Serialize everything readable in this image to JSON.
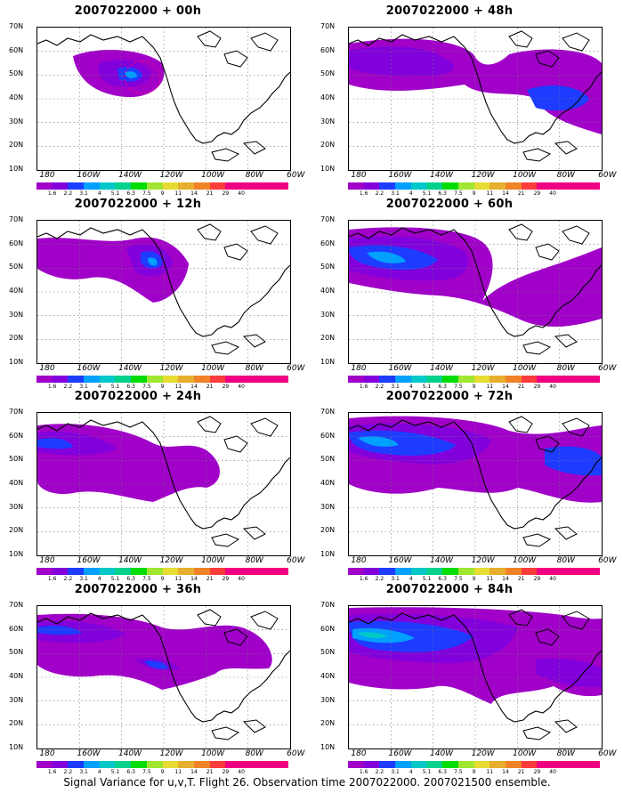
{
  "panels": [
    {
      "id": "p00",
      "title": "2007022000 + 00h"
    },
    {
      "id": "p48",
      "title": "2007022000 + 48h"
    },
    {
      "id": "p12",
      "title": "2007022000 + 12h"
    },
    {
      "id": "p60",
      "title": "2007022000 + 60h"
    },
    {
      "id": "p24",
      "title": "2007022000 + 24h"
    },
    {
      "id": "p72",
      "title": "2007022000 + 72h"
    },
    {
      "id": "p36",
      "title": "2007022000 + 36h"
    },
    {
      "id": "p84",
      "title": "2007022000 + 84h"
    }
  ],
  "lat_labels": [
    "70N",
    "60N",
    "50N",
    "40N",
    "30N",
    "20N",
    "10N"
  ],
  "lon_labels": [
    "180",
    "160W",
    "140W",
    "120W",
    "100W",
    "80W",
    "60W"
  ],
  "colorbar_labels": [
    "1.6",
    "2.2",
    "3.1",
    "4",
    "5.1",
    "6.3",
    "7.5",
    "9",
    "11",
    "14",
    "21",
    "29",
    "40"
  ],
  "colorbar_colors": [
    "#a000c8",
    "#8200dc",
    "#1e3cff",
    "#00a0ff",
    "#00c8c8",
    "#00d28c",
    "#00dc00",
    "#a0e632",
    "#e6dc32",
    "#e6af2d",
    "#f08228",
    "#fa3c3c",
    "#f00082"
  ],
  "caption": "Signal Variance for u,v,T. Flight 26. Observation time 2007022000. 2007021500 ensemble."
}
